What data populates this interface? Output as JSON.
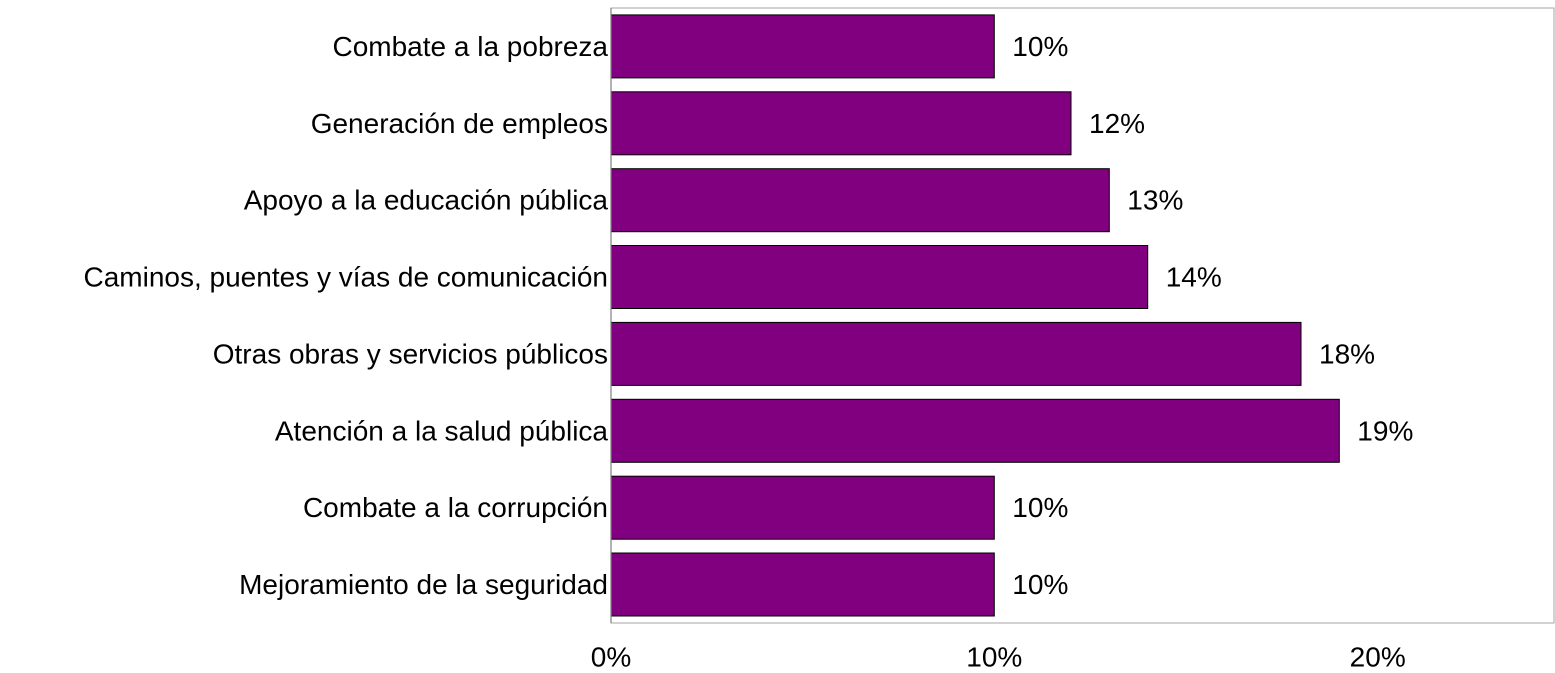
{
  "chart_data": {
    "type": "bar",
    "orientation": "horizontal",
    "categories": [
      "Combate a la pobreza",
      "Generación de empleos",
      "Apoyo a la educación pública",
      "Caminos, puentes y vías de comunicación",
      "Otras obras y servicios públicos",
      "Atención a la salud pública",
      "Combate a la corrupción",
      "Mejoramiento de la seguridad"
    ],
    "values": [
      10,
      12,
      13,
      14,
      18,
      19,
      10,
      10
    ],
    "data_labels": [
      "10%",
      "12%",
      "13%",
      "14%",
      "18%",
      "19%",
      "10%",
      "10%"
    ],
    "xlim": [
      0,
      24.6
    ],
    "x_ticks": [
      0,
      10,
      20
    ],
    "x_tick_labels": [
      "0%",
      "10%",
      "20%"
    ],
    "title": "",
    "xlabel": "",
    "ylabel": "",
    "grid": false,
    "legend": "none",
    "bar_color": "#800080",
    "bar_stroke": "#000000"
  }
}
